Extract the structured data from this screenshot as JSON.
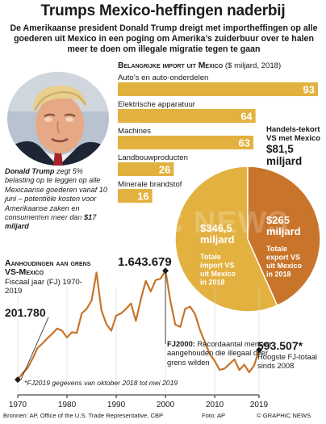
{
  "header": {
    "title": "Trumps Mexico-heffingen naderbij",
    "subtitle": "De Amerikaanse president Donald Trump dreigt met importheffingen op alle goederen uit Mexico in een poging om Amerika’s zuiderbuur over te halen meer te doen om illegale migratie tegen te gaan"
  },
  "caption": {
    "name": "Donald Trump",
    "text": " zegt 5% belasting op te leggen op alle Mexicaanse goederen vanaf 10 juni – potentiële kosten voor Amerikaanse zaken en consumenten meer dan ",
    "amount": "$17 miljard"
  },
  "imports": {
    "title_bold": "Belangrijke import uit Mexico",
    "title_rest": " ($ miljard, 2018)"
  },
  "trade": {
    "deficit_label": "Handels-tekort VS met Mexico",
    "deficit_value": "$81,5 miljard",
    "import_value": "$346,5 miljard",
    "import_label": "Totale import VS uit Mexico in 2018",
    "export_value": "$265 miljard",
    "export_label": "Totale export VS uit Mexico in 2018"
  },
  "arrests": {
    "title": "Aanhoudingen aan grens VS-Mexico",
    "subtitle": "Fiscaal jaar (FJ) 1970-2019",
    "start_value": "201.780",
    "peak_value": "1.643.679",
    "annotation_bold": "FJ2000:",
    "annotation_text": " Recordaantal mensen aangehouden die illegaal over grens wilden",
    "end_value": "593.507*",
    "end_text": "Hoogste FJ-totaal sinds 2008",
    "footnote": "*FJ2019 gegevens van oktober 2018 tot mei 2019"
  },
  "footer": {
    "sources": "Bronnen: AP, Office of the U.S. Trade Representative, CBP",
    "photo": "Foto: AP",
    "brand": "© GRAPHIC NEWS"
  },
  "watermark": "GRAPHIC NEWS",
  "colors": {
    "bar": "#e2b13f",
    "line": "#c8742a",
    "pie_import": "#e2b13f",
    "pie_export": "#c8742a",
    "text": "#1a1a1a"
  },
  "chart_data": [
    {
      "type": "bar",
      "title": "Belangrijke import uit Mexico ($ miljard, 2018)",
      "categories": [
        "Auto’s en auto-onderdelen",
        "Elektrische apparatuur",
        "Machines",
        "Landbouwproducten",
        "Minerale brandstof"
      ],
      "values": [
        93,
        64,
        63,
        26,
        16
      ],
      "xlim": [
        0,
        93
      ]
    },
    {
      "type": "pie",
      "categories": [
        "Totale import VS uit Mexico in 2018",
        "Totale export VS uit Mexico in 2018"
      ],
      "values": [
        346.5,
        265
      ]
    },
    {
      "type": "line",
      "title": "Aanhoudingen aan grens VS-Mexico",
      "xlabel": "Fiscaal jaar (FJ)",
      "x_ticks": [
        1970,
        1980,
        1990,
        2000,
        2010,
        2019
      ],
      "xlim": [
        1970,
        2019
      ],
      "ylim": [
        0,
        1700000
      ],
      "x": [
        1970,
        1971,
        1972,
        1973,
        1974,
        1975,
        1976,
        1977,
        1978,
        1979,
        1980,
        1981,
        1982,
        1983,
        1984,
        1985,
        1986,
        1987,
        1988,
        1989,
        1990,
        1991,
        1992,
        1993,
        1994,
        1995,
        1996,
        1997,
        1998,
        1999,
        2000,
        2001,
        2002,
        2003,
        2004,
        2005,
        2006,
        2007,
        2008,
        2009,
        2010,
        2011,
        2012,
        2013,
        2014,
        2015,
        2016,
        2017,
        2018,
        2019
      ],
      "y": [
        201780,
        290000,
        355000,
        480000,
        620000,
        680000,
        750000,
        810000,
        880000,
        850000,
        760000,
        830000,
        820000,
        1080000,
        1140000,
        1250000,
        1620000,
        1120000,
        940000,
        850000,
        1050000,
        1080000,
        1140000,
        1210000,
        980000,
        1270000,
        1510000,
        1370000,
        1520000,
        1540000,
        1643679,
        1240000,
        930000,
        900000,
        1140000,
        1170000,
        1070000,
        860000,
        700000,
        540000,
        450000,
        330000,
        350000,
        410000,
        470000,
        330000,
        400000,
        300000,
        390000,
        593507
      ],
      "annotations": [
        {
          "x": 1970,
          "y": 201780,
          "label": "201.780"
        },
        {
          "x": 2000,
          "y": 1643679,
          "label": "1.643.679"
        },
        {
          "x": 2019,
          "y": 593507,
          "label": "593.507*"
        }
      ]
    }
  ]
}
